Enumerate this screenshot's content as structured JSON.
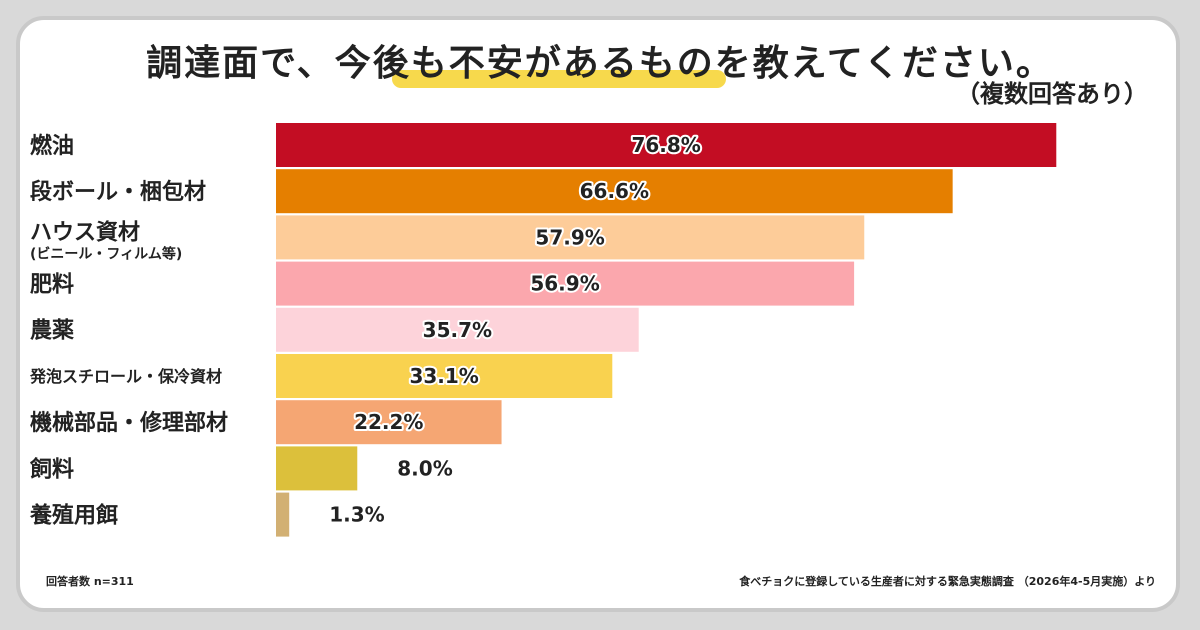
{
  "chart_data": {
    "type": "bar",
    "orientation": "horizontal",
    "title": "調達面で、今後も不安があるものを教えてください。",
    "subtitle": "（複数回答あり）",
    "categories": [
      "燃油",
      "段ボール・梱包材",
      "ハウス資材",
      "肥料",
      "農薬",
      "発泡スチロール・保冷資材",
      "機械部品・修理部材",
      "飼料",
      "養殖用餌"
    ],
    "category_notes": [
      "",
      "",
      "(ビニール・フィルム等)",
      "",
      "",
      "",
      "",
      "",
      ""
    ],
    "values": [
      76.8,
      66.6,
      57.9,
      56.9,
      35.7,
      33.1,
      22.2,
      8.0,
      1.3
    ],
    "value_labels": [
      "76.8%",
      "66.6%",
      "57.9%",
      "56.9%",
      "35.7%",
      "33.1%",
      "22.2%",
      "8.0%",
      "1.3%"
    ],
    "colors": [
      "#c30d23",
      "#e57f00",
      "#fdcc99",
      "#fba7ad",
      "#fdd3da",
      "#f9d24f",
      "#f5a673",
      "#dcc03b",
      "#d2b073"
    ],
    "xlim": [
      0,
      100
    ],
    "grid": false,
    "legend": "none"
  },
  "footer": {
    "respondents": "回答者数 n=311",
    "source": "食べチョクに登録している生産者に対する緊急実態調査 （2026年4-5月実施）より"
  },
  "colors": {
    "title_underline": "#f7d94c",
    "card_border": "#c9c9c9",
    "background": "#d9d9d9"
  }
}
